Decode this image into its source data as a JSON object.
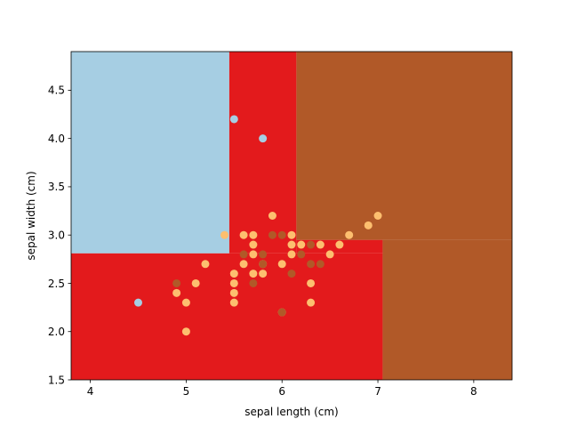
{
  "chart_data": {
    "type": "scatter",
    "title": "",
    "xlabel": "sepal length (cm)",
    "ylabel": "sepal width (cm)",
    "xlim": [
      3.8,
      8.4
    ],
    "ylim": [
      1.5,
      4.9
    ],
    "xticks": [
      4,
      5,
      6,
      7,
      8
    ],
    "xtick_labels": [
      "4",
      "5",
      "6",
      "7",
      "8"
    ],
    "yticks": [
      1.5,
      2.0,
      2.5,
      3.0,
      3.5,
      4.0,
      4.5
    ],
    "ytick_labels": [
      "1.5",
      "2.0",
      "2.5",
      "3.0",
      "3.5",
      "4.0",
      "4.5"
    ],
    "colors": {
      "class_light_blue": "#a6cee3",
      "class_red": "#e31a1c",
      "class_brown": "#b15928",
      "point_orange": "#fdbf6f",
      "point_light_blue": "#a6cee3",
      "point_brown": "#b15928"
    },
    "decision_regions": [
      {
        "name": "region-light-blue",
        "color": "#a6cee3",
        "x": [
          3.8,
          5.45
        ],
        "y": [
          2.81,
          4.9
        ]
      },
      {
        "name": "region-red",
        "color": "#e31a1c",
        "x": [
          5.45,
          6.15
        ],
        "y": [
          2.81,
          4.9
        ]
      },
      {
        "name": "region-red",
        "color": "#e31a1c",
        "x": [
          3.8,
          7.05
        ],
        "y": [
          1.5,
          2.81
        ]
      },
      {
        "name": "region-red",
        "color": "#e31a1c",
        "x": [
          6.15,
          7.05
        ],
        "y": [
          2.81,
          2.95
        ]
      },
      {
        "name": "region-brown",
        "color": "#b15928",
        "x": [
          6.15,
          8.4
        ],
        "y": [
          2.95,
          4.9
        ]
      },
      {
        "name": "region-brown",
        "color": "#b15928",
        "x": [
          7.05,
          8.4
        ],
        "y": [
          1.5,
          2.95
        ]
      }
    ],
    "series": [
      {
        "name": "light-blue-points",
        "color": "#a6cee3",
        "points": [
          [
            5.5,
            4.2
          ],
          [
            5.8,
            4.0
          ],
          [
            4.5,
            2.3
          ]
        ]
      },
      {
        "name": "orange-points",
        "color": "#fdbf6f",
        "points": [
          [
            5.4,
            3.0
          ],
          [
            5.6,
            3.0
          ],
          [
            5.7,
            3.0
          ],
          [
            5.7,
            2.9
          ],
          [
            5.7,
            2.8
          ],
          [
            5.9,
            3.2
          ],
          [
            5.8,
            2.7
          ],
          [
            5.6,
            2.7
          ],
          [
            5.5,
            2.6
          ],
          [
            5.5,
            2.5
          ],
          [
            5.5,
            2.4
          ],
          [
            5.5,
            2.3
          ],
          [
            5.7,
            2.6
          ],
          [
            5.8,
            2.6
          ],
          [
            5.2,
            2.7
          ],
          [
            4.9,
            2.4
          ],
          [
            5.1,
            2.5
          ],
          [
            5.0,
            2.3
          ],
          [
            5.0,
            2.0
          ],
          [
            6.0,
            2.2
          ],
          [
            6.0,
            2.7
          ],
          [
            6.1,
            3.0
          ],
          [
            6.1,
            2.9
          ],
          [
            6.1,
            2.8
          ],
          [
            6.2,
            2.9
          ],
          [
            6.4,
            2.9
          ],
          [
            6.5,
            2.8
          ],
          [
            6.6,
            2.9
          ],
          [
            6.7,
            3.0
          ],
          [
            6.9,
            3.1
          ],
          [
            7.0,
            3.2
          ],
          [
            6.3,
            2.5
          ],
          [
            6.3,
            2.3
          ]
        ]
      },
      {
        "name": "brown-points",
        "color": "#b15928",
        "points": [
          [
            4.9,
            2.5
          ],
          [
            5.6,
            2.8
          ],
          [
            5.7,
            2.5
          ],
          [
            5.8,
            2.8
          ],
          [
            5.8,
            2.7
          ],
          [
            5.9,
            3.0
          ],
          [
            6.0,
            3.0
          ],
          [
            6.0,
            2.2
          ],
          [
            6.1,
            2.6
          ],
          [
            6.2,
            2.8
          ],
          [
            6.3,
            2.7
          ],
          [
            6.3,
            2.9
          ],
          [
            6.4,
            2.7
          ]
        ]
      }
    ]
  }
}
